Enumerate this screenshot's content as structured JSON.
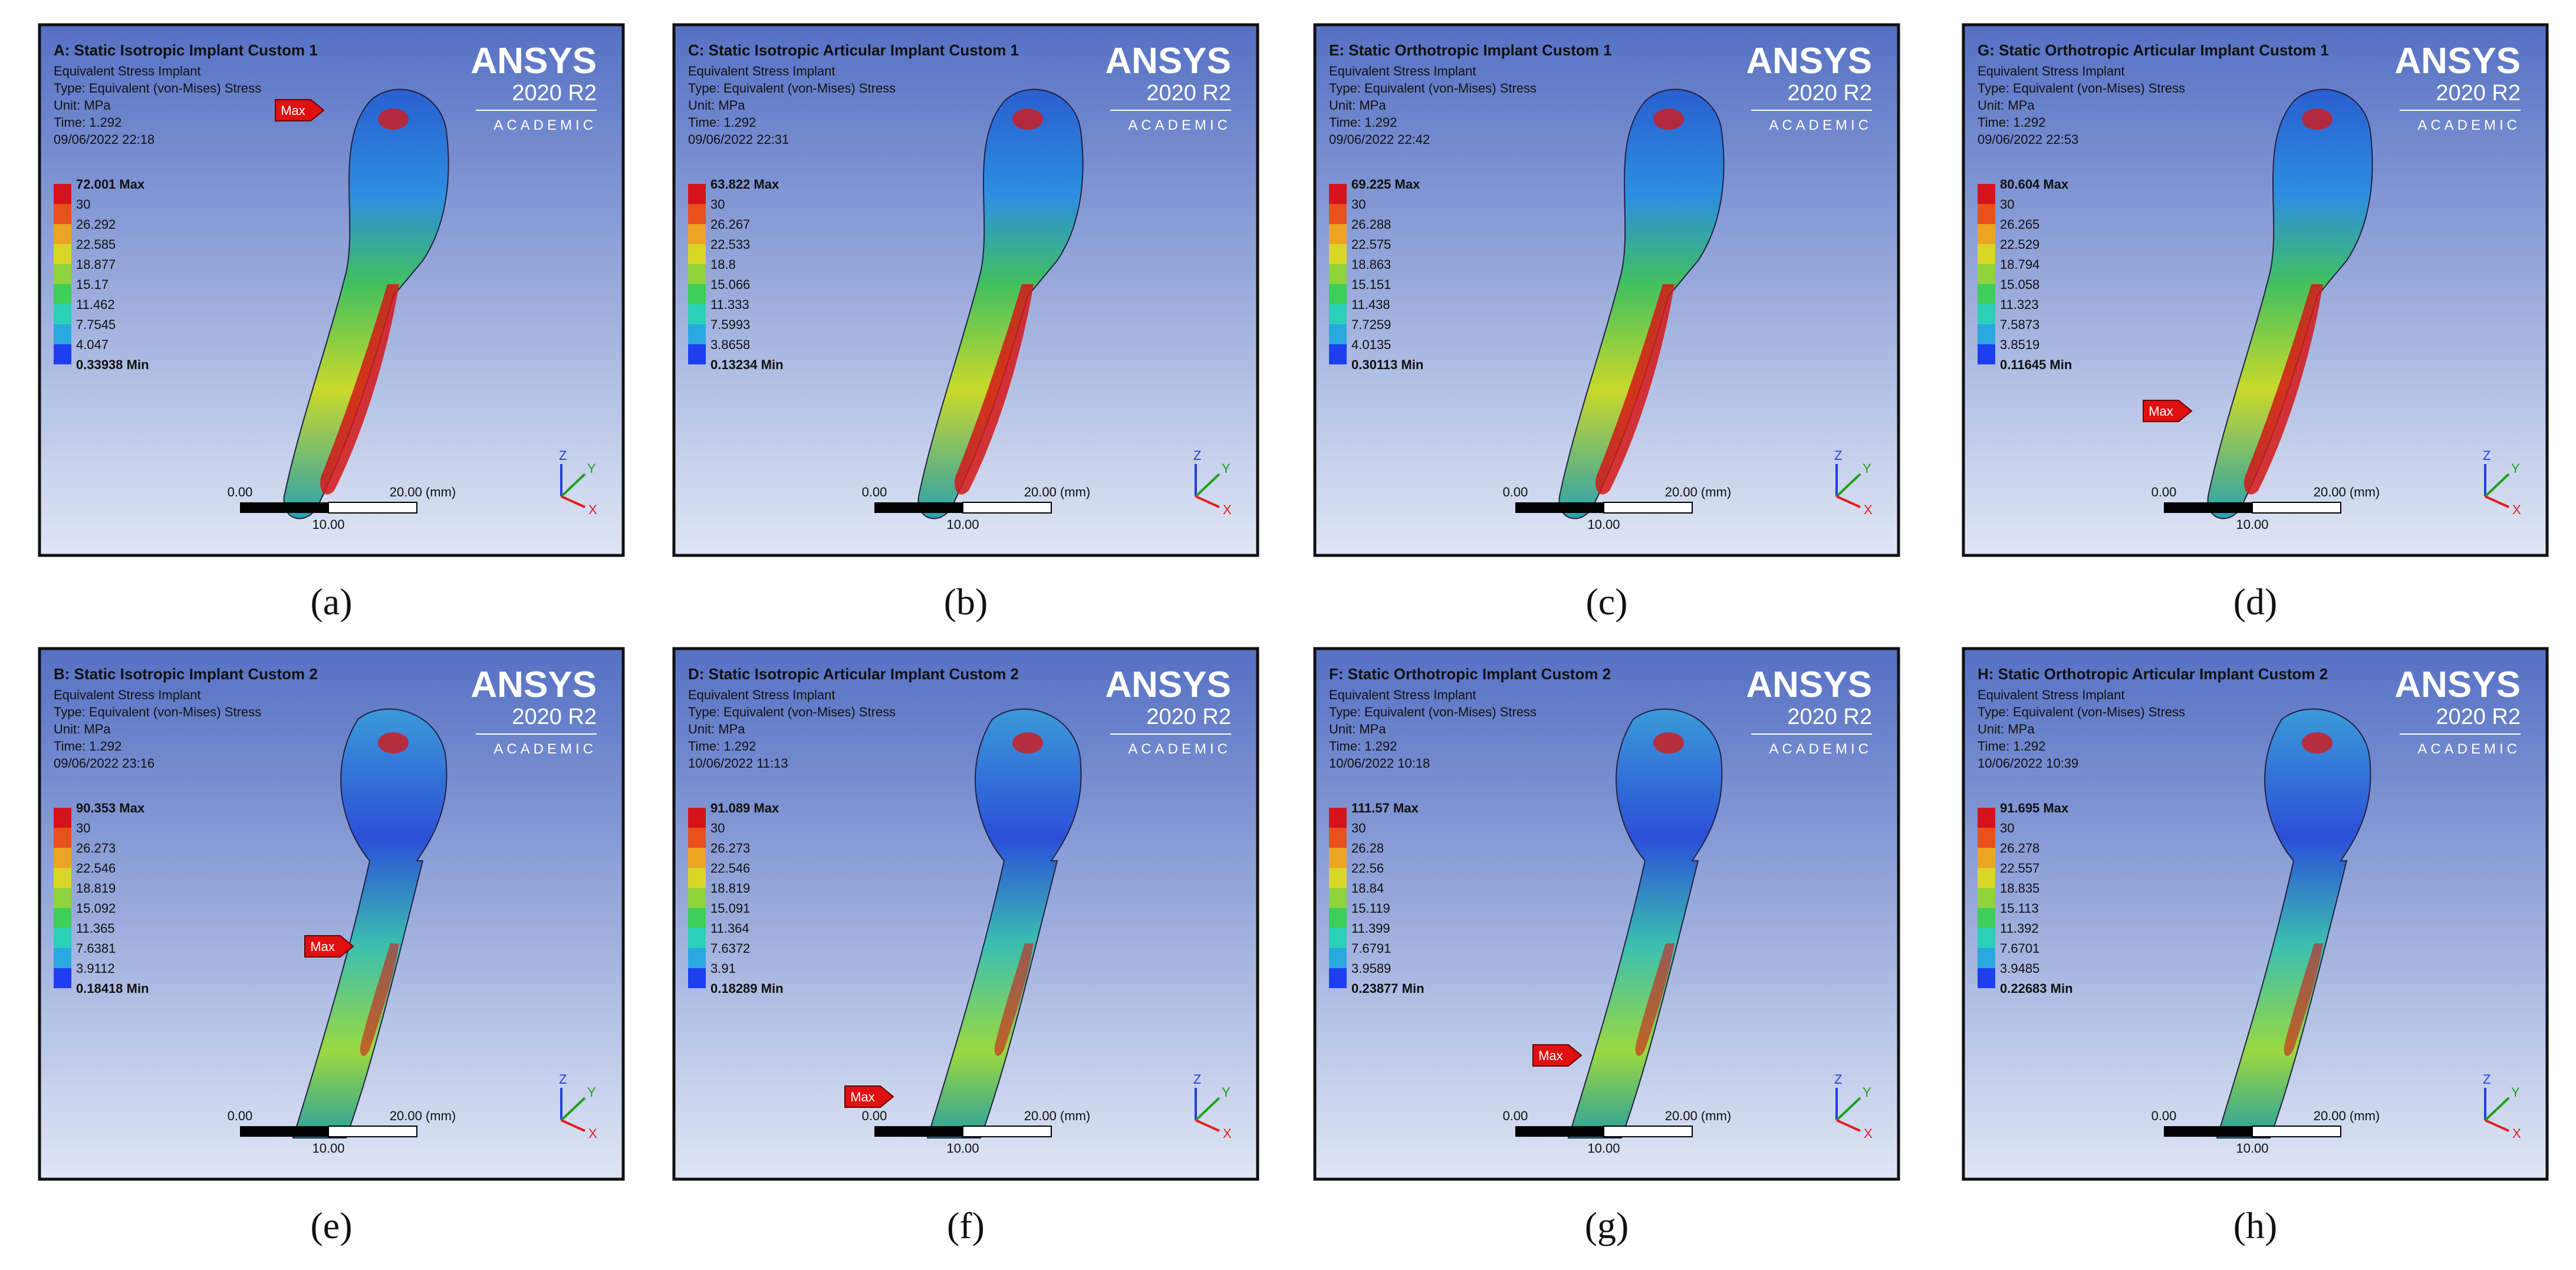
{
  "logo": {
    "brand": "ANSYS",
    "version": "2020 R2",
    "edition": "ACADEMIC"
  },
  "scale_bar": {
    "start": "0.00",
    "end": "20.00 (mm)",
    "middle": "10.00"
  },
  "axes": {
    "z": "Z",
    "y": "Y",
    "x": "X"
  },
  "max_marker": "Max",
  "panels": [
    {
      "caption": "(a)",
      "title": "A: Static Isotropic Implant Custom 1",
      "info": [
        "Equivalent Stress Implant",
        "Type: Equivalent (von-Mises) Stress",
        "Unit: MPa",
        "Time: 1.292",
        "09/06/2022 22:18"
      ],
      "legend": [
        "72.001 Max",
        "30",
        "26.292",
        "22.585",
        "18.877",
        "15.17",
        "11.462",
        "7.7545",
        "4.047",
        "0.33938 Min"
      ]
    },
    {
      "caption": "(b)",
      "title": "C: Static Isotropic Articular Implant Custom 1",
      "info": [
        "Equivalent Stress Implant",
        "Type: Equivalent (von-Mises) Stress",
        "Unit: MPa",
        "Time: 1.292",
        "09/06/2022 22:31"
      ],
      "legend": [
        "63.822 Max",
        "30",
        "26.267",
        "22.533",
        "18.8",
        "15.066",
        "11.333",
        "7.5993",
        "3.8658",
        "0.13234 Min"
      ]
    },
    {
      "caption": "(c)",
      "title": "E: Static Orthotropic Implant Custom 1",
      "info": [
        "Equivalent Stress Implant",
        "Type: Equivalent (von-Mises) Stress",
        "Unit: MPa",
        "Time: 1.292",
        "09/06/2022 22:42"
      ],
      "legend": [
        "69.225 Max",
        "30",
        "26.288",
        "22.575",
        "18.863",
        "15.151",
        "11.438",
        "7.7259",
        "4.0135",
        "0.30113 Min"
      ]
    },
    {
      "caption": "(d)",
      "title": "G: Static Orthotropic Articular Implant Custom 1",
      "info": [
        "Equivalent Stress Implant",
        "Type: Equivalent (von-Mises) Stress",
        "Unit: MPa",
        "Time: 1.292",
        "09/06/2022 22:53"
      ],
      "legend": [
        "80.604 Max",
        "30",
        "26.265",
        "22.529",
        "18.794",
        "15.058",
        "11.323",
        "7.5873",
        "3.8519",
        "0.11645 Min"
      ]
    },
    {
      "caption": "(e)",
      "title": "B: Static Isotropic Implant Custom 2",
      "info": [
        "Equivalent Stress Implant",
        "Type: Equivalent (von-Mises) Stress",
        "Unit: MPa",
        "Time: 1.292",
        "09/06/2022 23:16"
      ],
      "legend": [
        "90.353 Max",
        "30",
        "26.273",
        "22.546",
        "18.819",
        "15.092",
        "11.365",
        "7.6381",
        "3.9112",
        "0.18418 Min"
      ]
    },
    {
      "caption": "(f)",
      "title": "D: Static Isotropic Articular Implant Custom 2",
      "info": [
        "Equivalent Stress Implant",
        "Type: Equivalent (von-Mises) Stress",
        "Unit: MPa",
        "Time: 1.292",
        "10/06/2022 11:13"
      ],
      "legend": [
        "91.089 Max",
        "30",
        "26.273",
        "22.546",
        "18.819",
        "15.091",
        "11.364",
        "7.6372",
        "3.91",
        "0.18289 Min"
      ]
    },
    {
      "caption": "(g)",
      "title": "F: Static Orthotropic Implant Custom 2",
      "info": [
        "Equivalent Stress Implant",
        "Type: Equivalent (von-Mises) Stress",
        "Unit: MPa",
        "Time: 1.292",
        "10/06/2022 10:18"
      ],
      "legend": [
        "111.57 Max",
        "30",
        "26.28",
        "22.56",
        "18.84",
        "15.119",
        "11.399",
        "7.6791",
        "3.9589",
        "0.23877 Min"
      ]
    },
    {
      "caption": "(h)",
      "title": "H: Static Orthotropic Articular Implant Custom 2",
      "info": [
        "Equivalent Stress Implant",
        "Type: Equivalent (von-Mises) Stress",
        "Unit: MPa",
        "Time: 1.292",
        "10/06/2022 10:39"
      ],
      "legend": [
        "91.695 Max",
        "30",
        "26.278",
        "22.557",
        "18.835",
        "15.113",
        "11.392",
        "7.6701",
        "3.9485",
        "0.22683 Min"
      ]
    }
  ]
}
